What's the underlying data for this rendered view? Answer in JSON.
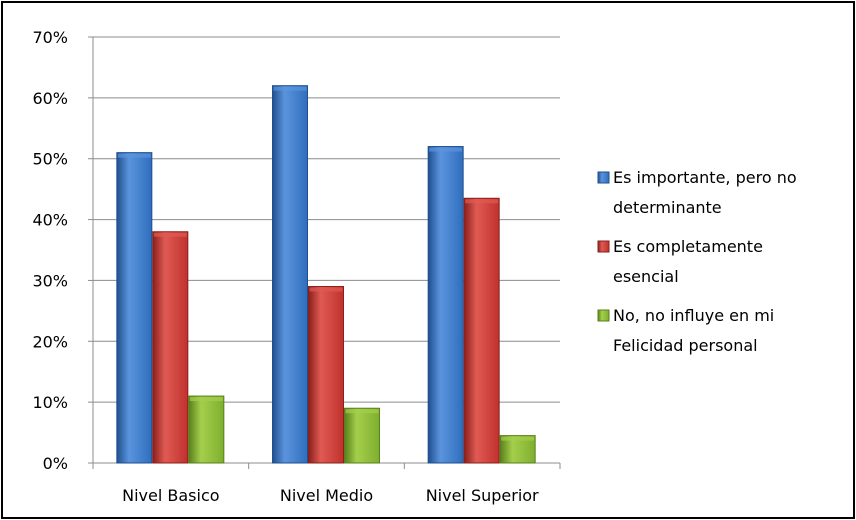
{
  "chart_data": {
    "type": "bar",
    "title": "",
    "xlabel": "",
    "ylabel": "",
    "categories": [
      "Nivel Basico",
      "Nivel Medio",
      "Nivel Superior"
    ],
    "ylim": [
      0,
      70
    ],
    "y_ticks": [
      "0%",
      "10%",
      "20%",
      "30%",
      "40%",
      "50%",
      "60%",
      "70%"
    ],
    "y_tick_values": [
      0,
      10,
      20,
      30,
      40,
      50,
      60,
      70
    ],
    "grid": true,
    "legend_position": "right",
    "series": [
      {
        "name": "Es importante, pero no determinante",
        "legend_lines": [
          "Es importante, pero no",
          "determinante"
        ],
        "color": "#2f6ebd",
        "color_light": "#5b94dd",
        "color_dark": "#1f4f8f",
        "values": [
          51,
          62,
          52
        ]
      },
      {
        "name": "Es completamente esencial",
        "legend_lines": [
          "Es completamente",
          "esencial"
        ],
        "color": "#c0312c",
        "color_light": "#e05a54",
        "color_dark": "#8a1f1b",
        "values": [
          38,
          29,
          43.5
        ]
      },
      {
        "name": "No, no influye en mi Felicidad personal",
        "legend_lines": [
          "No, no influye en mi",
          "Felicidad personal"
        ],
        "color": "#7fae2e",
        "color_light": "#a4cf4c",
        "color_dark": "#58801c",
        "values": [
          11,
          9,
          4.5
        ]
      }
    ]
  }
}
